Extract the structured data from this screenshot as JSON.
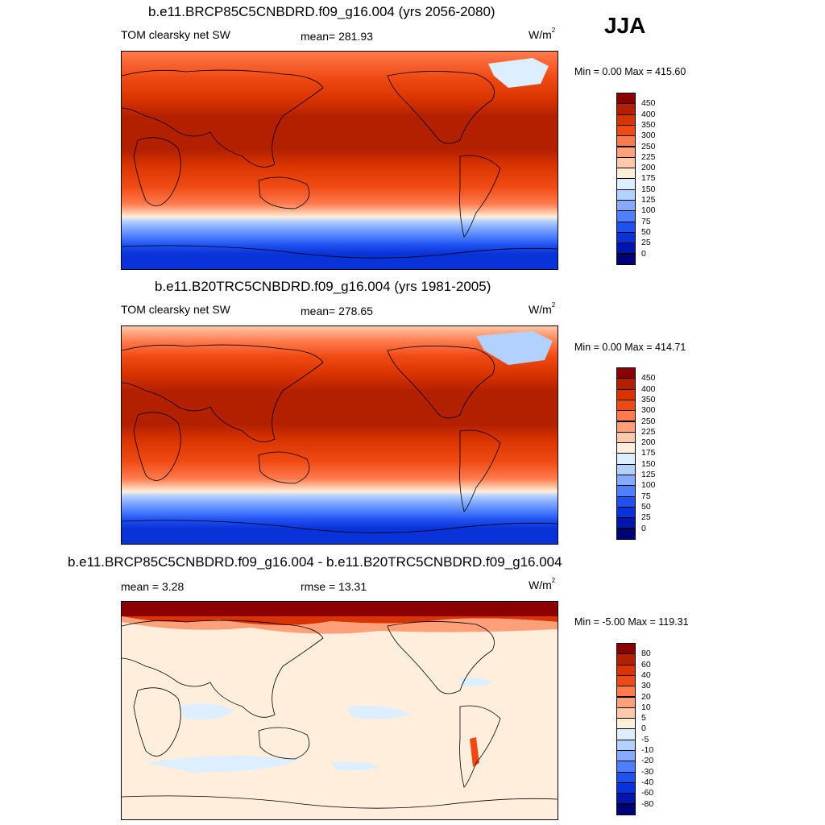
{
  "season": "JJA",
  "panels": [
    {
      "title": "b.e11.BRCP85C5CNBDRD.f09_g16.004 (yrs 2056-2080)",
      "variable": "TOM clearsky net SW",
      "stat_left": "mean= 281.93",
      "stat_mid": "",
      "units": "W/m",
      "units_sup": "2",
      "minmax": "Min =   0.00 Max = 415.60",
      "colorbar": {
        "colors": [
          "#8b0000",
          "#b22000",
          "#d93300",
          "#f04a14",
          "#ff7a4d",
          "#ffa07a",
          "#ffc8a8",
          "#ffeedc",
          "#dceeff",
          "#b3d1ff",
          "#85aaff",
          "#4d7fff",
          "#1f50f0",
          "#0a32d9",
          "#0014b0",
          "#00007a"
        ],
        "labels": [
          "450",
          "400",
          "350",
          "300",
          "250",
          "225",
          "200",
          "175",
          "150",
          "125",
          "100",
          "75",
          "50",
          "25",
          "0"
        ]
      }
    },
    {
      "title": "b.e11.B20TRC5CNBDRD.f09_g16.004 (yrs 1981-2005)",
      "variable": "TOM clearsky net SW",
      "stat_left": "mean= 278.65",
      "stat_mid": "",
      "units": "W/m",
      "units_sup": "2",
      "minmax": "Min =   0.00 Max = 414.71",
      "colorbar": {
        "colors": [
          "#8b0000",
          "#b22000",
          "#d93300",
          "#f04a14",
          "#ff7a4d",
          "#ffa07a",
          "#ffc8a8",
          "#ffeedc",
          "#dceeff",
          "#b3d1ff",
          "#85aaff",
          "#4d7fff",
          "#1f50f0",
          "#0a32d9",
          "#0014b0",
          "#00007a"
        ],
        "labels": [
          "450",
          "400",
          "350",
          "300",
          "250",
          "225",
          "200",
          "175",
          "150",
          "125",
          "100",
          "75",
          "50",
          "25",
          "0"
        ]
      }
    },
    {
      "title": "b.e11.BRCP85C5CNBDRD.f09_g16.004 - b.e11.B20TRC5CNBDRD.f09_g16.004",
      "variable": "",
      "stat_left": "mean =   3.28",
      "stat_mid": "rmse =  13.31",
      "units": "W/m",
      "units_sup": "2",
      "minmax": "Min =  -5.00 Max = 119.31",
      "colorbar": {
        "colors": [
          "#8b0000",
          "#b22000",
          "#d93300",
          "#f04a14",
          "#ff7a4d",
          "#ffa07a",
          "#ffc8a8",
          "#ffeedc",
          "#dceeff",
          "#b3d1ff",
          "#85aaff",
          "#4d7fff",
          "#1f50f0",
          "#0a32d9",
          "#0014b0",
          "#00007a"
        ],
        "labels": [
          "80",
          "60",
          "40",
          "30",
          "20",
          "10",
          "5",
          "0",
          "-5",
          "-10",
          "-20",
          "-30",
          "-40",
          "-60",
          "-80"
        ]
      }
    }
  ]
}
